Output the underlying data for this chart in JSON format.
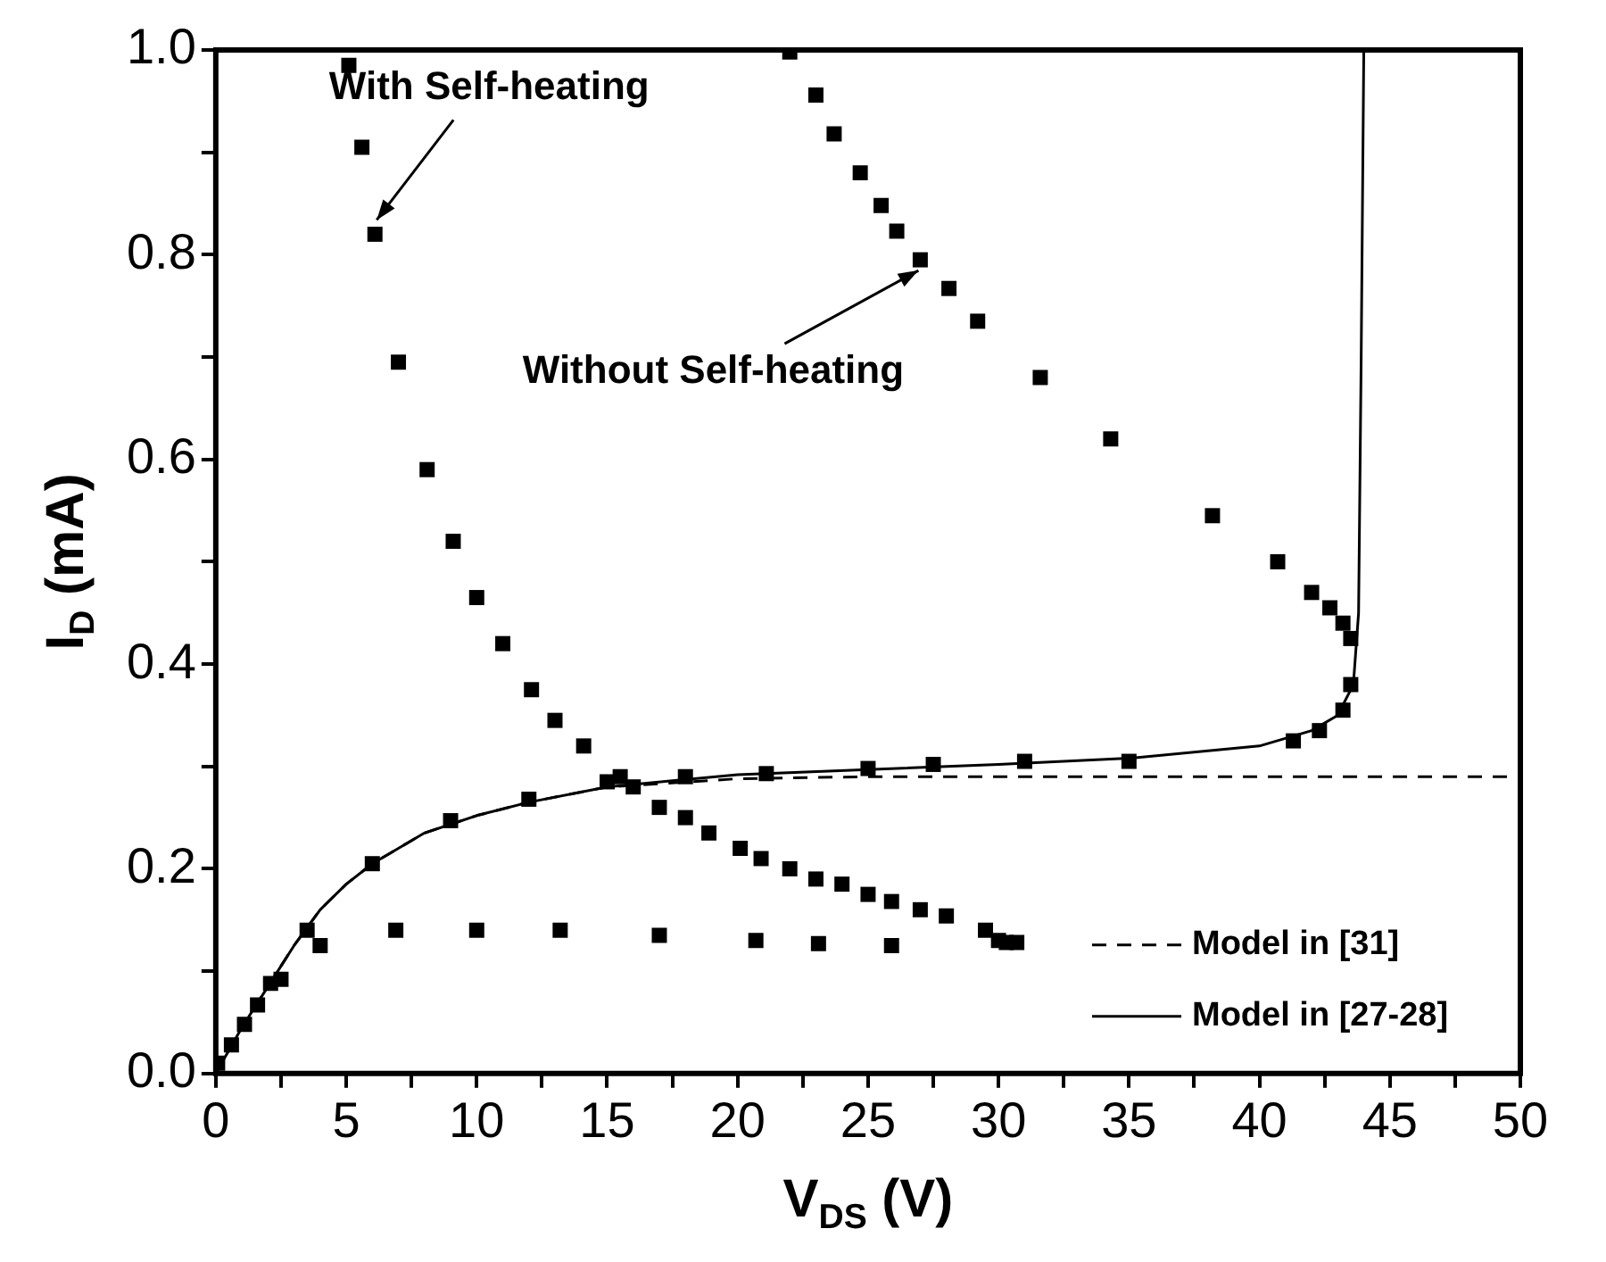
{
  "chart_data": {
    "type": "scatter",
    "xlabel": "V$_{DS}$ (V)",
    "ylabel": "I$_{D}$ (mA)",
    "xlim": [
      0,
      50
    ],
    "ylim": [
      0,
      1
    ],
    "xticks": [
      0,
      {
        "value": 2.5,
        "label": null
      },
      5,
      {
        "value": 7.5,
        "label": null
      },
      10,
      {
        "value": 12.5,
        "label": null
      },
      15,
      {
        "value": 17.5,
        "label": null
      },
      20,
      {
        "value": 22.5,
        "label": null
      },
      25,
      {
        "value": 27.5,
        "label": null
      },
      30,
      {
        "value": 32.5,
        "label": null
      },
      35,
      {
        "value": 37.5,
        "label": null
      },
      40,
      {
        "value": 42.5,
        "label": null
      },
      45,
      {
        "value": 47.5,
        "label": null
      },
      50
    ],
    "yticks": [
      {
        "value": 0,
        "label": "0.0"
      },
      {
        "value": 0.1,
        "label": null
      },
      0.2,
      {
        "value": 0.3,
        "label": null
      },
      0.4,
      {
        "value": 0.5,
        "label": null
      },
      0.6,
      {
        "value": 0.7,
        "label": null
      },
      0.8,
      {
        "value": 0.9,
        "label": null
      },
      {
        "value": 1,
        "label": "1.0"
      }
    ],
    "grid": false,
    "legend": "bottom right",
    "marker": "square",
    "series": [
      {
        "color": "#000000",
        "x": [
          5.1,
          5.6,
          6.1,
          7.0,
          8.1,
          9.1,
          10.0,
          11.0,
          12.1,
          13.0,
          14.1,
          16.0,
          17.0,
          18.0,
          18.9,
          20.1,
          20.9,
          22.0,
          23.0,
          24.0,
          25.0,
          25.9,
          27.0,
          28.0,
          29.5,
          30.0,
          30.3,
          30.7,
          4.0,
          6.9,
          10.0,
          13.2,
          17.0,
          20.7,
          23.1,
          25.9,
          0.07,
          0.6,
          1.1,
          1.6,
          2.1,
          2.5,
          3.5,
          6.0,
          9.0,
          12.0,
          15.0,
          15.5,
          18.0,
          21.1,
          25.0,
          27.5,
          31.0,
          35.0,
          41.3,
          42.3,
          43.2,
          43.5,
          22.0,
          23.0,
          23.7,
          24.7,
          25.5,
          26.1,
          27.0,
          28.1,
          29.2,
          31.6,
          34.3,
          38.2,
          40.7,
          42.0,
          42.7,
          43.2,
          43.5
        ],
        "values": [
          0.985,
          0.905,
          0.82,
          0.695,
          0.59,
          0.52,
          0.465,
          0.42,
          0.375,
          0.345,
          0.32,
          0.28,
          0.26,
          0.25,
          0.235,
          0.22,
          0.21,
          0.2,
          0.19,
          0.185,
          0.175,
          0.168,
          0.16,
          0.154,
          0.14,
          0.13,
          0.128,
          0.128,
          0.125,
          0.14,
          0.14,
          0.14,
          0.135,
          0.13,
          0.127,
          0.125,
          0.01,
          0.028,
          0.048,
          0.067,
          0.088,
          0.092,
          0.14,
          0.205,
          0.247,
          0.268,
          0.285,
          0.29,
          0.29,
          0.293,
          0.298,
          0.302,
          0.305,
          0.305,
          0.325,
          0.335,
          0.355,
          0.38,
          0.998,
          0.956,
          0.918,
          0.88,
          0.848,
          0.823,
          0.795,
          0.767,
          0.735,
          0.68,
          0.62,
          0.545,
          0.5,
          0.47,
          0.455,
          0.44,
          0.425
        ]
      },
      {
        "type": "line",
        "name": "Model in [31]",
        "color": "#000000",
        "marker": "none",
        "line_style": "dashed",
        "x": [
          0,
          1,
          2,
          3,
          4,
          5,
          6,
          8,
          10,
          12,
          15,
          20,
          25,
          30,
          50
        ],
        "values": [
          0,
          0.045,
          0.085,
          0.125,
          0.16,
          0.185,
          0.205,
          0.235,
          0.252,
          0.265,
          0.28,
          0.288,
          0.29,
          0.29,
          0.29
        ]
      },
      {
        "type": "line",
        "name": "Model in [27-28]",
        "color": "#000000",
        "marker": "none",
        "line_style": "solid",
        "x": [
          0,
          1,
          2,
          3,
          4,
          5,
          6,
          8,
          10,
          12,
          15,
          20,
          25,
          30,
          35,
          40,
          42,
          43,
          43.6,
          43.8,
          43.9,
          44
        ],
        "values": [
          0,
          0.045,
          0.085,
          0.125,
          0.16,
          0.185,
          0.205,
          0.235,
          0.252,
          0.265,
          0.28,
          0.292,
          0.297,
          0.302,
          0.308,
          0.32,
          0.335,
          0.35,
          0.38,
          0.45,
          0.7,
          1.0
        ]
      }
    ],
    "annotations": [
      {
        "text": "With Self-heating",
        "x": 6.1,
        "y": 0.82
      },
      {
        "text": "Without Self-heating",
        "x": 27.0,
        "y": 0.795
      }
    ]
  }
}
